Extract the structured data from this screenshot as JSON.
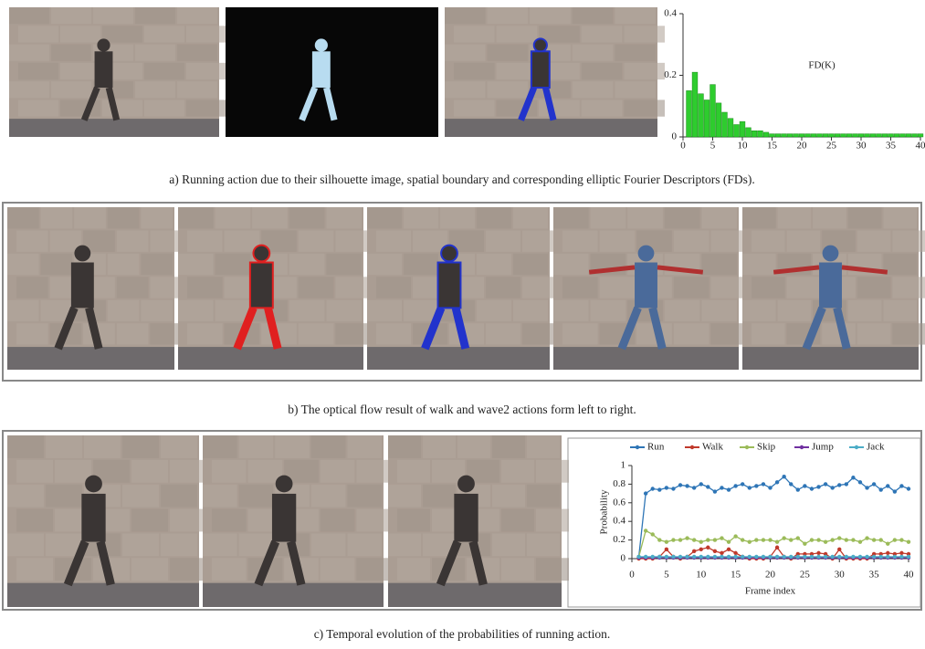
{
  "captions": {
    "a": "a) Running action due to their silhouette image, spatial boundary and corresponding elliptic Fourier Descriptors (FDs).",
    "b": "b) The optical flow result of walk and wave2 actions form left to right.",
    "c": "c) Temporal evolution of the probabilities of running action."
  },
  "chart_data": [
    {
      "type": "bar",
      "annotation": "FD(K)",
      "color": "#2ecc2e",
      "x": [
        1,
        2,
        3,
        4,
        5,
        6,
        7,
        8,
        9,
        10,
        11,
        12,
        13,
        14,
        15,
        16,
        17,
        18,
        19,
        20,
        21,
        22,
        23,
        24,
        25,
        26,
        27,
        28,
        29,
        30,
        31,
        32,
        33,
        34,
        35,
        36,
        37,
        38,
        39,
        40
      ],
      "values": [
        0.15,
        0.21,
        0.14,
        0.12,
        0.17,
        0.11,
        0.08,
        0.06,
        0.04,
        0.05,
        0.03,
        0.02,
        0.02,
        0.015,
        0.01,
        0.01,
        0.01,
        0.01,
        0.01,
        0.01,
        0.01,
        0.01,
        0.01,
        0.01,
        0.01,
        0.01,
        0.01,
        0.01,
        0.01,
        0.01,
        0.01,
        0.01,
        0.01,
        0.01,
        0.01,
        0.01,
        0.01,
        0.01,
        0.01,
        0.01
      ],
      "xlim": [
        0,
        40
      ],
      "xticks": [
        0,
        5,
        10,
        15,
        20,
        25,
        30,
        35,
        40
      ],
      "ylim": [
        0,
        0.4
      ],
      "yticks": [
        0,
        0.2,
        0.4
      ]
    },
    {
      "type": "line",
      "xlabel": "Frame index",
      "ylabel": "Probability",
      "x": [
        1,
        2,
        3,
        4,
        5,
        6,
        7,
        8,
        9,
        10,
        11,
        12,
        13,
        14,
        15,
        16,
        17,
        18,
        19,
        20,
        21,
        22,
        23,
        24,
        25,
        26,
        27,
        28,
        29,
        30,
        31,
        32,
        33,
        34,
        35,
        36,
        37,
        38,
        39,
        40
      ],
      "series": [
        {
          "name": "Run",
          "color": "#2e75b6",
          "values": [
            0.02,
            0.7,
            0.75,
            0.74,
            0.76,
            0.75,
            0.79,
            0.78,
            0.76,
            0.8,
            0.77,
            0.72,
            0.76,
            0.74,
            0.78,
            0.8,
            0.76,
            0.78,
            0.8,
            0.76,
            0.82,
            0.88,
            0.8,
            0.74,
            0.78,
            0.75,
            0.77,
            0.8,
            0.76,
            0.79,
            0.8,
            0.87,
            0.82,
            0.76,
            0.8,
            0.74,
            0.78,
            0.72,
            0.78,
            0.75
          ]
        },
        {
          "name": "Walk",
          "color": "#c0392b",
          "values": [
            0,
            0,
            0,
            0.02,
            0.1,
            0.02,
            0,
            0.02,
            0.08,
            0.1,
            0.12,
            0.08,
            0.06,
            0.1,
            0.06,
            0.02,
            0,
            0,
            0,
            0.02,
            0.12,
            0.02,
            0,
            0.05,
            0.05,
            0.05,
            0.06,
            0.05,
            0,
            0.1,
            0,
            0,
            0,
            0,
            0.05,
            0.05,
            0.06,
            0.05,
            0.06,
            0.05
          ]
        },
        {
          "name": "Skip",
          "color": "#9bbb59",
          "values": [
            0.02,
            0.3,
            0.26,
            0.2,
            0.18,
            0.2,
            0.2,
            0.22,
            0.2,
            0.18,
            0.2,
            0.2,
            0.22,
            0.18,
            0.24,
            0.2,
            0.18,
            0.2,
            0.2,
            0.2,
            0.18,
            0.22,
            0.2,
            0.22,
            0.16,
            0.2,
            0.2,
            0.18,
            0.2,
            0.22,
            0.2,
            0.2,
            0.18,
            0.22,
            0.2,
            0.2,
            0.16,
            0.2,
            0.2,
            0.18
          ]
        },
        {
          "name": "Jump",
          "color": "#7030a0",
          "values": [
            0.01,
            0.01,
            0.01,
            0.01,
            0.01,
            0.01,
            0.01,
            0.01,
            0.01,
            0.01,
            0.01,
            0.01,
            0.01,
            0.01,
            0.01,
            0.01,
            0.01,
            0.01,
            0.01,
            0.01,
            0.01,
            0.01,
            0.01,
            0.01,
            0.01,
            0.01,
            0.01,
            0.01,
            0.01,
            0.01,
            0.01,
            0.01,
            0.01,
            0.01,
            0.01,
            0.01,
            0.01,
            0.01,
            0.01,
            0.01
          ]
        },
        {
          "name": "Jack",
          "color": "#4bacc6",
          "values": [
            0.02,
            0.02,
            0.02,
            0.02,
            0.02,
            0.02,
            0.02,
            0.02,
            0.02,
            0.02,
            0.02,
            0.02,
            0.02,
            0.02,
            0.02,
            0.02,
            0.02,
            0.02,
            0.02,
            0.02,
            0.02,
            0.02,
            0.02,
            0.02,
            0.02,
            0.02,
            0.02,
            0.02,
            0.02,
            0.02,
            0.02,
            0.02,
            0.02,
            0.02,
            0.02,
            0.02,
            0.02,
            0.02,
            0.02,
            0.02
          ]
        }
      ],
      "xlim": [
        0,
        40
      ],
      "xticks": [
        0,
        5,
        10,
        15,
        20,
        25,
        30,
        35,
        40
      ],
      "ylim": [
        0,
        1
      ],
      "yticks": [
        0,
        0.2,
        0.4,
        0.6,
        0.8,
        1
      ]
    }
  ]
}
